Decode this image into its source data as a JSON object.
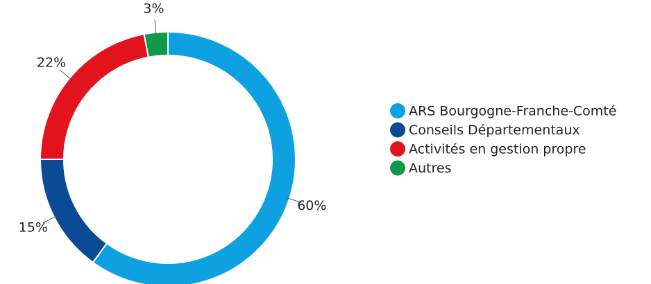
{
  "chart_data": {
    "type": "pie",
    "categories": [
      "ARS Bourgogne-Franche-Comté",
      "Conseils Départementaux",
      "Activités en gestion propre",
      "Autres"
    ],
    "values": [
      60,
      15,
      22,
      3
    ],
    "value_labels": [
      "60%",
      "15%",
      "22%",
      "3%"
    ],
    "colors": [
      "#0ea1e2",
      "#0b4a94",
      "#e2131c",
      "#0f9a4a"
    ],
    "donut": true,
    "legend": "right"
  }
}
